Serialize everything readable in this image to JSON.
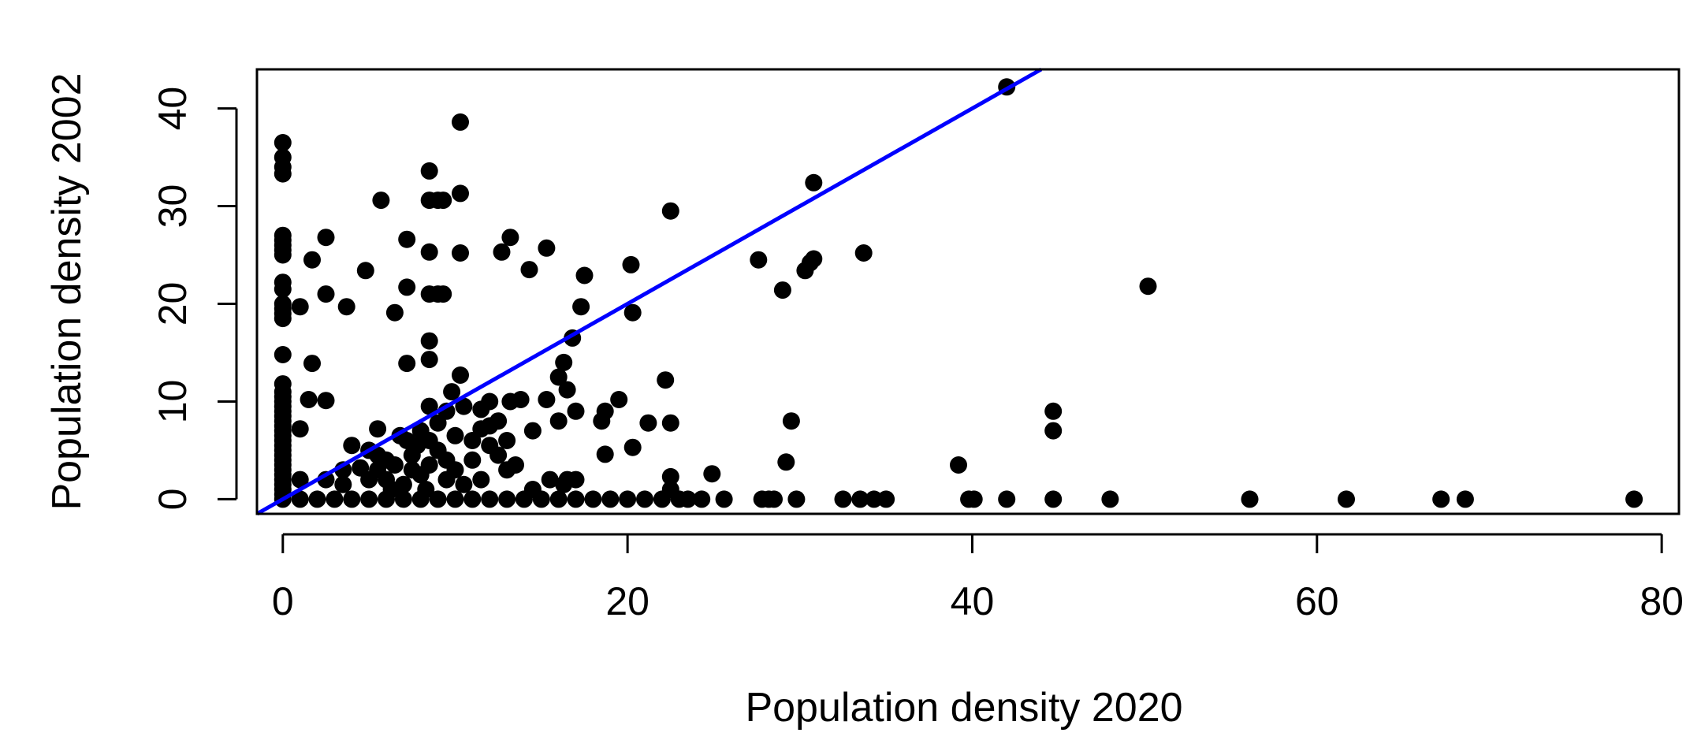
{
  "chart_data": {
    "type": "scatter",
    "title": "",
    "xlabel": "Population density 2020",
    "ylabel": "Population density 2002",
    "xlim": [
      -1.5,
      81
    ],
    "ylim": [
      -1.5,
      44
    ],
    "x_ticks": [
      0,
      20,
      40,
      60,
      80
    ],
    "y_ticks": [
      0,
      10,
      20,
      30,
      40
    ],
    "grid": false,
    "legend": "none",
    "point_color": "#000000",
    "line_color": "#0000ff",
    "reference_line": {
      "label": "",
      "slope": 1,
      "intercept": 0
    },
    "series": [
      {
        "name": "",
        "points": [
          [
            0,
            36.5
          ],
          [
            0,
            35
          ],
          [
            0,
            34
          ],
          [
            0,
            33.3
          ],
          [
            0,
            27
          ],
          [
            0,
            26.5
          ],
          [
            0,
            26
          ],
          [
            0,
            25.5
          ],
          [
            0,
            25
          ],
          [
            0,
            22.2
          ],
          [
            0,
            21.5
          ],
          [
            0,
            20
          ],
          [
            0,
            19.5
          ],
          [
            0,
            19
          ],
          [
            0,
            18.5
          ],
          [
            0,
            14.8
          ],
          [
            0,
            11.8
          ],
          [
            0,
            11
          ],
          [
            0,
            10.5
          ],
          [
            0,
            10
          ],
          [
            0,
            9.5
          ],
          [
            0,
            9
          ],
          [
            0,
            8.5
          ],
          [
            0,
            8
          ],
          [
            0,
            7.5
          ],
          [
            0,
            7
          ],
          [
            0,
            6.5
          ],
          [
            0,
            6
          ],
          [
            0,
            5.5
          ],
          [
            0,
            5
          ],
          [
            0,
            4.5
          ],
          [
            0,
            4
          ],
          [
            0,
            3.5
          ],
          [
            0,
            3
          ],
          [
            0,
            2.5
          ],
          [
            0,
            2
          ],
          [
            0,
            1.5
          ],
          [
            0,
            1
          ],
          [
            0,
            0.5
          ],
          [
            0,
            0
          ],
          [
            1,
            19.7
          ],
          [
            1,
            7.2
          ],
          [
            1,
            2
          ],
          [
            1,
            0
          ],
          [
            1.5,
            10.2
          ],
          [
            1.7,
            24.5
          ],
          [
            1.7,
            13.9
          ],
          [
            2,
            0
          ],
          [
            2.5,
            2
          ],
          [
            2.5,
            26.8
          ],
          [
            2.5,
            21
          ],
          [
            2.5,
            10.1
          ],
          [
            3,
            0
          ],
          [
            3.5,
            1.5
          ],
          [
            3.5,
            3
          ],
          [
            3.7,
            19.7
          ],
          [
            4,
            5.5
          ],
          [
            4,
            0
          ],
          [
            4.5,
            3.2
          ],
          [
            4.8,
            23.4
          ],
          [
            5,
            5
          ],
          [
            5,
            2
          ],
          [
            5,
            0
          ],
          [
            5.5,
            3
          ],
          [
            5.5,
            7.2
          ],
          [
            5.5,
            4.5
          ],
          [
            5.7,
            30.6
          ],
          [
            6,
            0
          ],
          [
            6,
            2
          ],
          [
            6,
            4
          ],
          [
            6.3,
            1
          ],
          [
            6.5,
            3.5
          ],
          [
            6.5,
            19.1
          ],
          [
            6.8,
            6.5
          ],
          [
            7,
            0
          ],
          [
            7,
            1.5
          ],
          [
            7.2,
            26.6
          ],
          [
            7.2,
            21.7
          ],
          [
            7.2,
            13.9
          ],
          [
            7.2,
            6
          ],
          [
            7.5,
            4.5
          ],
          [
            7.5,
            3
          ],
          [
            7.8,
            5.5
          ],
          [
            8,
            0
          ],
          [
            8,
            7
          ],
          [
            8,
            2.5
          ],
          [
            8.3,
            1
          ],
          [
            8.5,
            25.3
          ],
          [
            8.5,
            33.6
          ],
          [
            8.5,
            30.6
          ],
          [
            8.5,
            21
          ],
          [
            8.5,
            16.2
          ],
          [
            8.5,
            14.3
          ],
          [
            8.5,
            9.5
          ],
          [
            8.5,
            6
          ],
          [
            8.5,
            3.5
          ],
          [
            9,
            30.6
          ],
          [
            9,
            21
          ],
          [
            9,
            7.8
          ],
          [
            9,
            5
          ],
          [
            9,
            0
          ],
          [
            9.3,
            30.6
          ],
          [
            9.3,
            21
          ],
          [
            9.5,
            9
          ],
          [
            9.5,
            4
          ],
          [
            9.5,
            2
          ],
          [
            9.8,
            11
          ],
          [
            10,
            0
          ],
          [
            10,
            6.5
          ],
          [
            10,
            3
          ],
          [
            10.3,
            38.6
          ],
          [
            10.3,
            31.3
          ],
          [
            10.3,
            25.2
          ],
          [
            10.3,
            12.7
          ],
          [
            10.5,
            9.5
          ],
          [
            10.5,
            1.5
          ],
          [
            11,
            0
          ],
          [
            11,
            4
          ],
          [
            11,
            6
          ],
          [
            11.5,
            7.2
          ],
          [
            11.5,
            9.2
          ],
          [
            11.5,
            2
          ],
          [
            12,
            0
          ],
          [
            12,
            5.5
          ],
          [
            12,
            7.5
          ],
          [
            12,
            10
          ],
          [
            12.5,
            8
          ],
          [
            12.5,
            4.5
          ],
          [
            12.7,
            25.3
          ],
          [
            13,
            0
          ],
          [
            13,
            6
          ],
          [
            13,
            3
          ],
          [
            13.2,
            26.8
          ],
          [
            13.2,
            10
          ],
          [
            13.5,
            3.5
          ],
          [
            13.8,
            10.2
          ],
          [
            14,
            0
          ],
          [
            14.3,
            23.5
          ],
          [
            14.5,
            7
          ],
          [
            14.5,
            1
          ],
          [
            15,
            0
          ],
          [
            15.3,
            25.7
          ],
          [
            15.3,
            10.2
          ],
          [
            15.5,
            2
          ],
          [
            16,
            0
          ],
          [
            16,
            12.5
          ],
          [
            16,
            8
          ],
          [
            16.3,
            14
          ],
          [
            16.3,
            1.5
          ],
          [
            16.5,
            11.2
          ],
          [
            16.5,
            2
          ],
          [
            16.8,
            16.5
          ],
          [
            17,
            0
          ],
          [
            17,
            9
          ],
          [
            17,
            2
          ],
          [
            17.3,
            19.7
          ],
          [
            17.5,
            22.9
          ],
          [
            18,
            0
          ],
          [
            18.5,
            8
          ],
          [
            18.7,
            4.6
          ],
          [
            18.7,
            9
          ],
          [
            19,
            0
          ],
          [
            19.5,
            10.2
          ],
          [
            20,
            0
          ],
          [
            20.2,
            24
          ],
          [
            20.3,
            19.1
          ],
          [
            20.3,
            5.3
          ],
          [
            21,
            0
          ],
          [
            21.2,
            7.8
          ],
          [
            22,
            0
          ],
          [
            22.2,
            12.2
          ],
          [
            22.5,
            2.3
          ],
          [
            22.5,
            1
          ],
          [
            22.5,
            7.8
          ],
          [
            22.5,
            29.5
          ],
          [
            23,
            0
          ],
          [
            23.5,
            0
          ],
          [
            24.3,
            0
          ],
          [
            24.9,
            2.6
          ],
          [
            25.6,
            0
          ],
          [
            27.6,
            24.5
          ],
          [
            27.8,
            0
          ],
          [
            28.2,
            0
          ],
          [
            28.5,
            0
          ],
          [
            29,
            21.4
          ],
          [
            29.2,
            3.8
          ],
          [
            29.5,
            8
          ],
          [
            29.8,
            0
          ],
          [
            30.3,
            23.4
          ],
          [
            30.6,
            24.2
          ],
          [
            30.8,
            24.6
          ],
          [
            30.8,
            32.4
          ],
          [
            32.5,
            0
          ],
          [
            33.5,
            0
          ],
          [
            33.7,
            25.2
          ],
          [
            34.3,
            0
          ],
          [
            35,
            0
          ],
          [
            39.2,
            3.5
          ],
          [
            39.8,
            0
          ],
          [
            40.1,
            0
          ],
          [
            42,
            42.2
          ],
          [
            42,
            0
          ],
          [
            44.7,
            9
          ],
          [
            44.7,
            7
          ],
          [
            44.7,
            0
          ],
          [
            48,
            0
          ],
          [
            50.2,
            21.8
          ],
          [
            56.1,
            0
          ],
          [
            61.7,
            0
          ],
          [
            67.2,
            0
          ],
          [
            68.6,
            0
          ],
          [
            78.4,
            0
          ]
        ]
      }
    ]
  }
}
